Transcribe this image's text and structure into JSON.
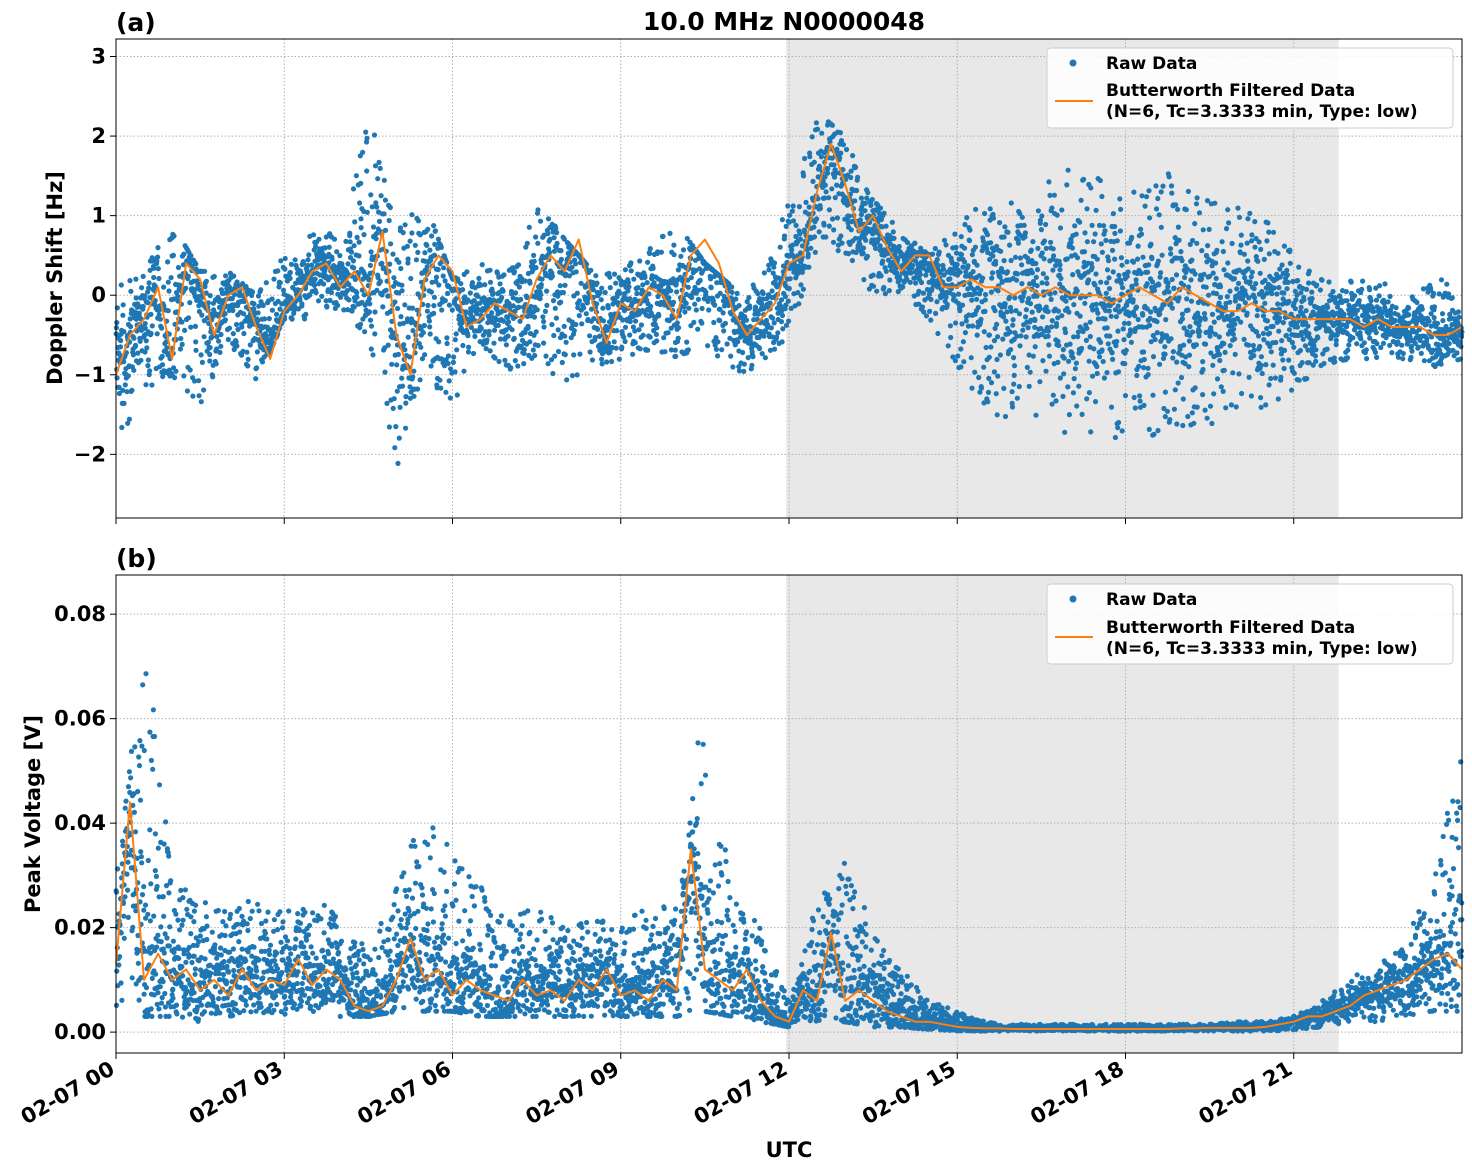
{
  "title": "10.0 MHz N0000048",
  "colors": {
    "raw": "#1f77b4",
    "filtered": "#ff7f0e",
    "shade": "#e8e8e8",
    "grid": "#b0b0b0"
  },
  "legend": {
    "raw_label": "Raw Data",
    "filtered_line1": "Butterworth Filtered Data",
    "filtered_line2": "(N=6, Tc=3.3333 min, Type: low)"
  },
  "chart_data": [
    {
      "type": "scatter",
      "panel_label": "(a)",
      "title": "10.0 MHz N0000048",
      "ylabel": "Doppler Shift [Hz]",
      "xlabel": "",
      "xlim_hours": [
        0,
        24
      ],
      "ylim": [
        -2.8,
        3.22
      ],
      "yticks": [
        -2,
        -1,
        0,
        1,
        2,
        3
      ],
      "ytick_labels": [
        "−2",
        "−1",
        "0",
        "1",
        "2",
        "3"
      ],
      "shaded_range_hours": [
        11.95,
        21.8
      ],
      "grid": true,
      "legend_position": "top-right",
      "series": [
        {
          "name": "Butterworth Filtered Data",
          "style": "line",
          "x_hours": [
            0,
            0.25,
            0.5,
            0.75,
            1,
            1.25,
            1.5,
            1.75,
            2,
            2.25,
            2.5,
            2.75,
            3,
            3.25,
            3.5,
            3.75,
            4,
            4.25,
            4.5,
            4.75,
            5,
            5.25,
            5.5,
            5.75,
            6,
            6.25,
            6.5,
            6.75,
            7,
            7.25,
            7.5,
            7.75,
            8,
            8.25,
            8.5,
            8.75,
            9,
            9.25,
            9.5,
            9.75,
            10,
            10.25,
            10.5,
            10.75,
            11,
            11.25,
            11.5,
            11.75,
            12,
            12.25,
            12.5,
            12.75,
            13,
            13.25,
            13.5,
            13.75,
            14,
            14.25,
            14.5,
            14.75,
            15,
            15.25,
            15.5,
            15.75,
            16,
            16.25,
            16.5,
            16.75,
            17,
            17.25,
            17.5,
            17.75,
            18,
            18.25,
            18.5,
            18.75,
            19,
            19.25,
            19.5,
            19.75,
            20,
            20.25,
            20.5,
            20.75,
            21,
            21.25,
            21.5,
            21.75,
            22,
            22.25,
            22.5,
            22.75,
            23,
            23.25,
            23.5,
            23.75,
            24
          ],
          "y": [
            -1.0,
            -0.5,
            -0.3,
            0.1,
            -0.8,
            0.4,
            0.2,
            -0.5,
            0.0,
            0.1,
            -0.4,
            -0.8,
            -0.2,
            0.0,
            0.3,
            0.4,
            0.1,
            0.3,
            0.0,
            0.8,
            -0.5,
            -1.0,
            0.2,
            0.5,
            0.3,
            -0.4,
            -0.3,
            -0.1,
            -0.2,
            -0.3,
            0.2,
            0.5,
            0.3,
            0.7,
            -0.1,
            -0.6,
            -0.1,
            -0.2,
            0.1,
            0.0,
            -0.3,
            0.5,
            0.7,
            0.4,
            -0.2,
            -0.5,
            -0.3,
            -0.1,
            0.4,
            0.5,
            1.3,
            1.9,
            1.4,
            0.8,
            1.0,
            0.6,
            0.3,
            0.5,
            0.5,
            0.1,
            0.1,
            0.2,
            0.1,
            0.1,
            0.0,
            0.1,
            0.0,
            0.1,
            0.0,
            0.0,
            0.0,
            -0.1,
            0.0,
            0.1,
            0.0,
            -0.1,
            0.1,
            0.0,
            -0.1,
            -0.2,
            -0.2,
            -0.1,
            -0.2,
            -0.2,
            -0.3,
            -0.3,
            -0.3,
            -0.3,
            -0.3,
            -0.4,
            -0.3,
            -0.4,
            -0.4,
            -0.4,
            -0.5,
            -0.5,
            -0.4
          ]
        }
      ],
      "raw_envelope": {
        "name": "Raw Data",
        "style": "scatter",
        "x_hours": [
          0,
          0.5,
          1,
          1.5,
          2,
          2.5,
          3,
          3.5,
          4,
          4.5,
          5,
          5.5,
          6,
          6.5,
          7,
          7.5,
          8,
          8.5,
          9,
          9.5,
          10,
          10.5,
          11,
          11.5,
          12,
          12.5,
          13,
          13.5,
          14,
          14.5,
          15,
          15.5,
          16,
          16.5,
          17,
          17.5,
          18,
          18.5,
          19,
          19.5,
          20,
          20.5,
          21,
          21.5,
          22,
          22.5,
          23,
          23.5,
          24
        ],
        "upper": [
          0.1,
          0.3,
          0.9,
          0.3,
          0.3,
          0.0,
          0.5,
          0.8,
          0.8,
          2.3,
          1.0,
          1.2,
          0.2,
          0.4,
          0.3,
          1.2,
          0.7,
          0.3,
          0.3,
          0.6,
          0.9,
          0.4,
          0.1,
          0.3,
          1.2,
          2.3,
          2.0,
          1.2,
          0.8,
          0.5,
          0.9,
          1.2,
          1.2,
          1.4,
          1.6,
          1.5,
          1.3,
          1.5,
          1.6,
          1.2,
          1.1,
          1.0,
          0.5,
          0.2,
          0.2,
          0.2,
          0.0,
          0.3,
          0.0
        ],
        "lower": [
          -2.0,
          -1.2,
          -1.0,
          -1.4,
          -0.6,
          -1.1,
          -0.3,
          -0.3,
          -0.2,
          -0.5,
          -2.2,
          -1.0,
          -1.4,
          -0.6,
          -1.0,
          -0.8,
          -1.2,
          -0.9,
          -0.8,
          -0.7,
          -0.8,
          -0.6,
          -1.0,
          -0.9,
          -0.5,
          0.6,
          0.5,
          0.0,
          0.0,
          -0.3,
          -0.9,
          -1.5,
          -1.7,
          -1.6,
          -1.8,
          -1.8,
          -1.8,
          -1.8,
          -1.7,
          -1.7,
          -1.5,
          -1.4,
          -1.2,
          -0.9,
          -0.8,
          -0.8,
          -0.8,
          -0.9,
          -0.8
        ]
      }
    },
    {
      "type": "scatter",
      "panel_label": "(b)",
      "ylabel": "Peak Voltage [V]",
      "xlabel": "UTC",
      "xlim_hours": [
        0,
        24
      ],
      "ylim": [
        -0.004,
        0.0875
      ],
      "yticks": [
        0.0,
        0.02,
        0.04,
        0.06,
        0.08
      ],
      "ytick_labels": [
        "0.00",
        "0.02",
        "0.04",
        "0.06",
        "0.08"
      ],
      "xticks_hours": [
        0,
        3,
        6,
        9,
        12,
        15,
        18,
        21
      ],
      "xtick_labels": [
        "02-07 00",
        "02-07 03",
        "02-07 06",
        "02-07 09",
        "02-07 12",
        "02-07 15",
        "02-07 18",
        "02-07 21"
      ],
      "shaded_range_hours": [
        11.95,
        21.8
      ],
      "grid": true,
      "legend_position": "top-right",
      "series": [
        {
          "name": "Butterworth Filtered Data",
          "style": "line",
          "x_hours": [
            0,
            0.25,
            0.5,
            0.75,
            1,
            1.25,
            1.5,
            1.75,
            2,
            2.25,
            2.5,
            2.75,
            3,
            3.25,
            3.5,
            3.75,
            4,
            4.25,
            4.5,
            4.75,
            5,
            5.25,
            5.5,
            5.75,
            6,
            6.25,
            6.5,
            6.75,
            7,
            7.25,
            7.5,
            7.75,
            8,
            8.25,
            8.5,
            8.75,
            9,
            9.25,
            9.5,
            9.75,
            10,
            10.25,
            10.5,
            10.75,
            11,
            11.25,
            11.5,
            11.75,
            12,
            12.25,
            12.5,
            12.75,
            13,
            13.25,
            13.5,
            13.75,
            14,
            14.25,
            14.5,
            14.75,
            15,
            15.25,
            15.5,
            15.75,
            16,
            16.25,
            16.5,
            16.75,
            17,
            17.25,
            17.5,
            17.75,
            18,
            18.25,
            18.5,
            18.75,
            19,
            19.25,
            19.5,
            19.75,
            20,
            20.25,
            20.5,
            20.75,
            21,
            21.25,
            21.5,
            21.75,
            22,
            22.25,
            22.5,
            22.75,
            23,
            23.25,
            23.5,
            23.75,
            24
          ],
          "y": [
            0.013,
            0.044,
            0.01,
            0.015,
            0.01,
            0.012,
            0.008,
            0.01,
            0.007,
            0.012,
            0.008,
            0.01,
            0.009,
            0.014,
            0.009,
            0.012,
            0.01,
            0.005,
            0.004,
            0.005,
            0.01,
            0.018,
            0.01,
            0.012,
            0.007,
            0.01,
            0.008,
            0.007,
            0.006,
            0.01,
            0.007,
            0.008,
            0.006,
            0.01,
            0.008,
            0.012,
            0.007,
            0.008,
            0.006,
            0.01,
            0.008,
            0.035,
            0.012,
            0.01,
            0.008,
            0.012,
            0.006,
            0.003,
            0.002,
            0.008,
            0.006,
            0.019,
            0.006,
            0.008,
            0.006,
            0.004,
            0.003,
            0.002,
            0.002,
            0.0015,
            0.001,
            0.0008,
            0.0007,
            0.0007,
            0.0006,
            0.0006,
            0.0006,
            0.0006,
            0.0006,
            0.0006,
            0.0006,
            0.0006,
            0.0006,
            0.0006,
            0.0006,
            0.0006,
            0.0007,
            0.0007,
            0.0008,
            0.0008,
            0.0008,
            0.0008,
            0.001,
            0.0015,
            0.002,
            0.003,
            0.003,
            0.004,
            0.005,
            0.007,
            0.008,
            0.009,
            0.01,
            0.012,
            0.014,
            0.015,
            0.012
          ]
        }
      ],
      "raw_envelope": {
        "name": "Raw Data",
        "style": "scatter",
        "x_hours": [
          0,
          0.5,
          1,
          1.5,
          2,
          2.5,
          3,
          3.5,
          4,
          4.5,
          5,
          5.5,
          6,
          6.5,
          7,
          7.5,
          8,
          8.5,
          9,
          9.5,
          10,
          10.5,
          11,
          11.5,
          12,
          12.5,
          13,
          13.5,
          14,
          14.5,
          15,
          15.5,
          16,
          16.5,
          17,
          17.5,
          18,
          18.5,
          19,
          19.5,
          20,
          20.5,
          21,
          21.5,
          22,
          22.5,
          23,
          23.5,
          24
        ],
        "upper": [
          0.03,
          0.078,
          0.03,
          0.025,
          0.025,
          0.025,
          0.023,
          0.025,
          0.024,
          0.015,
          0.028,
          0.043,
          0.035,
          0.028,
          0.022,
          0.024,
          0.02,
          0.022,
          0.02,
          0.025,
          0.024,
          0.066,
          0.028,
          0.02,
          0.006,
          0.025,
          0.033,
          0.02,
          0.012,
          0.006,
          0.004,
          0.002,
          0.0015,
          0.0015,
          0.0015,
          0.0015,
          0.0015,
          0.0015,
          0.0015,
          0.0015,
          0.002,
          0.002,
          0.003,
          0.006,
          0.01,
          0.014,
          0.018,
          0.03,
          0.06
        ],
        "lower": [
          0.005,
          0.003,
          0.003,
          0.002,
          0.003,
          0.004,
          0.003,
          0.004,
          0.003,
          0.003,
          0.004,
          0.004,
          0.004,
          0.003,
          0.003,
          0.003,
          0.003,
          0.003,
          0.003,
          0.003,
          0.003,
          0.004,
          0.003,
          0.002,
          0.001,
          0.002,
          0.002,
          0.001,
          0.001,
          0.0005,
          0.0003,
          0.0002,
          0.0002,
          0.0002,
          0.0002,
          0.0002,
          0.0002,
          0.0002,
          0.0002,
          0.0002,
          0.0002,
          0.0002,
          0.0004,
          0.001,
          0.002,
          0.002,
          0.003,
          0.004,
          0.004
        ]
      }
    }
  ]
}
